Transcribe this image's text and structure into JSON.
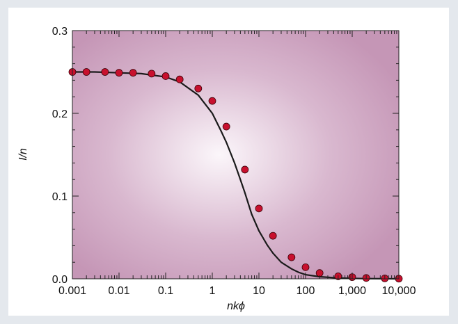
{
  "chart_data": {
    "type": "scatter",
    "xscale": "log",
    "xlabel": "nkϕ",
    "ylabel": "I/n",
    "xlim": [
      0.001,
      10000
    ],
    "ylim": [
      0,
      0.3
    ],
    "grid": false,
    "x_ticks": [
      {
        "value": 0.001,
        "label": "0.001"
      },
      {
        "value": 0.01,
        "label": "0.01"
      },
      {
        "value": 0.1,
        "label": "0.1"
      },
      {
        "value": 1,
        "label": "1"
      },
      {
        "value": 10,
        "label": "10"
      },
      {
        "value": 100,
        "label": "100"
      },
      {
        "value": 1000,
        "label": "1,000"
      },
      {
        "value": 10000,
        "label": "10,000"
      }
    ],
    "y_ticks": [
      {
        "value": 0,
        "label": "0.0"
      },
      {
        "value": 0.1,
        "label": "0.1"
      },
      {
        "value": 0.2,
        "label": "0.2"
      },
      {
        "value": 0.3,
        "label": "0.3"
      }
    ],
    "series": [
      {
        "kind": "points",
        "color": "#c8102e",
        "x": [
          0.001,
          0.002,
          0.005,
          0.01,
          0.02,
          0.05,
          0.1,
          0.2,
          0.5,
          1,
          2,
          5,
          10,
          20,
          50,
          100,
          200,
          500,
          1000,
          2000,
          5000,
          10000
        ],
        "y": [
          0.25,
          0.25,
          0.25,
          0.249,
          0.249,
          0.248,
          0.245,
          0.241,
          0.23,
          0.215,
          0.184,
          0.132,
          0.085,
          0.052,
          0.026,
          0.014,
          0.007,
          0.003,
          0.002,
          0.001,
          0.0005,
          0.0002
        ]
      },
      {
        "kind": "line",
        "color": "#1a1a1a",
        "x": [
          0.001,
          0.003,
          0.01,
          0.03,
          0.1,
          0.2,
          0.5,
          1,
          1.5,
          2,
          3,
          4,
          5,
          7,
          10,
          15,
          20,
          30,
          50,
          70,
          100,
          200,
          500,
          1000,
          2000,
          5000,
          10000
        ],
        "y": [
          0.25,
          0.25,
          0.249,
          0.248,
          0.244,
          0.238,
          0.222,
          0.2,
          0.18,
          0.165,
          0.14,
          0.12,
          0.104,
          0.078,
          0.058,
          0.041,
          0.031,
          0.02,
          0.012,
          0.008,
          0.005,
          0.0025,
          0.001,
          0.0005,
          0.0002,
          0.0001,
          0
        ]
      }
    ]
  }
}
